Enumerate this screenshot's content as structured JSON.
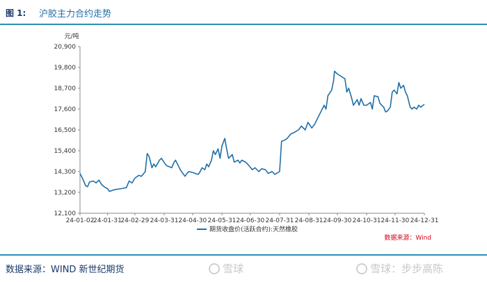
{
  "header": {
    "figure_label": "图 1:",
    "title": "沪胶主力合约走势"
  },
  "footer": {
    "source": "数据来源：WIND  新世纪期货",
    "watermark_left": "雪球",
    "watermark_right": "雪球：步步高陈"
  },
  "chart_data": {
    "type": "line",
    "ylabel": "元/吨",
    "ylim": [
      12100,
      20900
    ],
    "yticks": [
      12100,
      13200,
      14300,
      15400,
      16500,
      17600,
      18700,
      19800,
      20900
    ],
    "ytick_labels": [
      "12,100",
      "13,200",
      "14,300",
      "15,400",
      "16,500",
      "17,600",
      "18,700",
      "19,800",
      "20,900"
    ],
    "xlim": [
      "2024-01-02",
      "2024-12-31"
    ],
    "xtick_labels": [
      "24-01-02",
      "24-01-31",
      "24-02-29",
      "24-03-31",
      "24-04-30",
      "24-05-31",
      "24-06-30",
      "24-07-31",
      "24-08-31",
      "24-09-30",
      "24-10-31",
      "24-11-30",
      "24-12-31"
    ],
    "xtick_dates": [
      "2024-01-02",
      "2024-01-31",
      "2024-02-29",
      "2024-03-31",
      "2024-04-30",
      "2024-05-31",
      "2024-06-30",
      "2024-07-31",
      "2024-08-31",
      "2024-09-30",
      "2024-10-31",
      "2024-11-30",
      "2024-12-31"
    ],
    "legend_position": "bottom",
    "source_note": "数据来源：Wind",
    "series": [
      {
        "name": "期货收盘价(活跃合约):天然橡胶",
        "color": "#1f6ea8",
        "points": [
          [
            "2024-01-02",
            14200
          ],
          [
            "2024-01-05",
            13900
          ],
          [
            "2024-01-08",
            13550
          ],
          [
            "2024-01-10",
            13500
          ],
          [
            "2024-01-12",
            13750
          ],
          [
            "2024-01-16",
            13800
          ],
          [
            "2024-01-19",
            13700
          ],
          [
            "2024-01-22",
            13850
          ],
          [
            "2024-01-25",
            13600
          ],
          [
            "2024-01-29",
            13450
          ],
          [
            "2024-01-31",
            13400
          ],
          [
            "2024-02-02",
            13250
          ],
          [
            "2024-02-05",
            13300
          ],
          [
            "2024-02-08",
            13350
          ],
          [
            "2024-02-15",
            13400
          ],
          [
            "2024-02-20",
            13450
          ],
          [
            "2024-02-23",
            13800
          ],
          [
            "2024-02-26",
            13700
          ],
          [
            "2024-02-29",
            13950
          ],
          [
            "2024-03-04",
            14100
          ],
          [
            "2024-03-07",
            14050
          ],
          [
            "2024-03-11",
            14300
          ],
          [
            "2024-03-13",
            15250
          ],
          [
            "2024-03-15",
            15100
          ],
          [
            "2024-03-18",
            14500
          ],
          [
            "2024-03-20",
            14700
          ],
          [
            "2024-03-22",
            14550
          ],
          [
            "2024-03-26",
            14900
          ],
          [
            "2024-03-28",
            15000
          ],
          [
            "2024-04-01",
            14700
          ],
          [
            "2024-04-03",
            14600
          ],
          [
            "2024-04-08",
            14500
          ],
          [
            "2024-04-10",
            14750
          ],
          [
            "2024-04-12",
            14900
          ],
          [
            "2024-04-15",
            14600
          ],
          [
            "2024-04-17",
            14400
          ],
          [
            "2024-04-19",
            14250
          ],
          [
            "2024-04-22",
            14050
          ],
          [
            "2024-04-24",
            14200
          ],
          [
            "2024-04-26",
            14300
          ],
          [
            "2024-04-30",
            14250
          ],
          [
            "2024-05-06",
            14150
          ],
          [
            "2024-05-08",
            14300
          ],
          [
            "2024-05-10",
            14500
          ],
          [
            "2024-05-13",
            14400
          ],
          [
            "2024-05-15",
            14700
          ],
          [
            "2024-05-17",
            14550
          ],
          [
            "2024-05-20",
            14900
          ],
          [
            "2024-05-22",
            15400
          ],
          [
            "2024-05-24",
            15200
          ],
          [
            "2024-05-27",
            15500
          ],
          [
            "2024-05-29",
            15000
          ],
          [
            "2024-05-31",
            15650
          ],
          [
            "2024-06-03",
            16050
          ],
          [
            "2024-06-05",
            15500
          ],
          [
            "2024-06-07",
            15000
          ],
          [
            "2024-06-11",
            15200
          ],
          [
            "2024-06-13",
            14800
          ],
          [
            "2024-06-17",
            14900
          ],
          [
            "2024-06-19",
            14750
          ],
          [
            "2024-06-21",
            14900
          ],
          [
            "2024-06-25",
            14800
          ],
          [
            "2024-06-28",
            14650
          ],
          [
            "2024-07-02",
            14400
          ],
          [
            "2024-07-05",
            14500
          ],
          [
            "2024-07-09",
            14300
          ],
          [
            "2024-07-12",
            14450
          ],
          [
            "2024-07-16",
            14400
          ],
          [
            "2024-07-19",
            14200
          ],
          [
            "2024-07-23",
            14300
          ],
          [
            "2024-07-26",
            14150
          ],
          [
            "2024-07-31",
            14300
          ],
          [
            "2024-08-02",
            15900
          ],
          [
            "2024-08-05",
            15950
          ],
          [
            "2024-08-08",
            16050
          ],
          [
            "2024-08-12",
            16300
          ],
          [
            "2024-08-15",
            16350
          ],
          [
            "2024-08-20",
            16500
          ],
          [
            "2024-08-23",
            16700
          ],
          [
            "2024-08-27",
            16500
          ],
          [
            "2024-08-30",
            16900
          ],
          [
            "2024-09-03",
            16600
          ],
          [
            "2024-09-06",
            16800
          ],
          [
            "2024-09-10",
            17200
          ],
          [
            "2024-09-13",
            17500
          ],
          [
            "2024-09-16",
            17800
          ],
          [
            "2024-09-18",
            17600
          ],
          [
            "2024-09-20",
            18300
          ],
          [
            "2024-09-24",
            18600
          ],
          [
            "2024-09-26",
            19100
          ],
          [
            "2024-09-27",
            19600
          ],
          [
            "2024-09-30",
            19450
          ],
          [
            "2024-10-08",
            19200
          ],
          [
            "2024-10-10",
            18500
          ],
          [
            "2024-10-12",
            18700
          ],
          [
            "2024-10-15",
            18200
          ],
          [
            "2024-10-17",
            17800
          ],
          [
            "2024-10-21",
            18100
          ],
          [
            "2024-10-23",
            17800
          ],
          [
            "2024-10-25",
            18150
          ],
          [
            "2024-10-28",
            17800
          ],
          [
            "2024-10-31",
            17800
          ],
          [
            "2024-11-04",
            17950
          ],
          [
            "2024-11-06",
            17600
          ],
          [
            "2024-11-08",
            18300
          ],
          [
            "2024-11-12",
            18250
          ],
          [
            "2024-11-14",
            17900
          ],
          [
            "2024-11-18",
            17700
          ],
          [
            "2024-11-20",
            17450
          ],
          [
            "2024-11-22",
            17500
          ],
          [
            "2024-11-25",
            17700
          ],
          [
            "2024-11-27",
            18500
          ],
          [
            "2024-11-29",
            18600
          ],
          [
            "2024-12-02",
            18400
          ],
          [
            "2024-12-04",
            19000
          ],
          [
            "2024-12-06",
            18700
          ],
          [
            "2024-12-09",
            18850
          ],
          [
            "2024-12-11",
            18500
          ],
          [
            "2024-12-13",
            18300
          ],
          [
            "2024-12-16",
            17700
          ],
          [
            "2024-12-18",
            17600
          ],
          [
            "2024-12-20",
            17700
          ],
          [
            "2024-12-23",
            17600
          ],
          [
            "2024-12-25",
            17800
          ],
          [
            "2024-12-27",
            17700
          ],
          [
            "2024-12-31",
            17850
          ]
        ]
      }
    ]
  }
}
